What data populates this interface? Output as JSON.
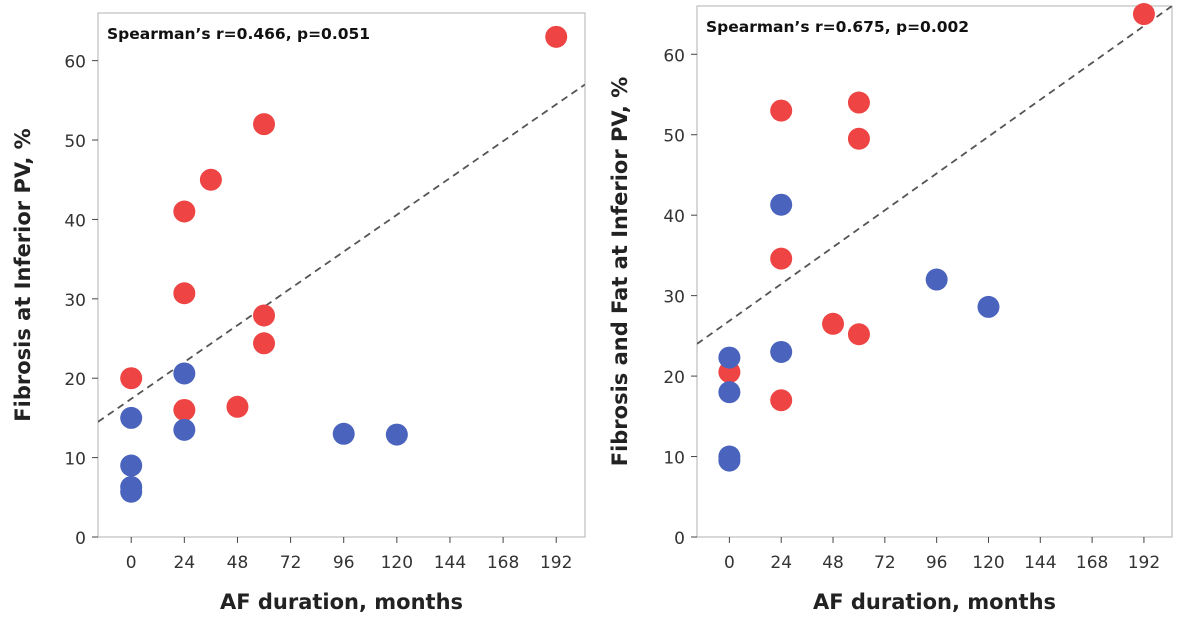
{
  "colors": {
    "series_red": "#ee4444",
    "series_blue": "#4a63bd"
  },
  "chart_data": [
    {
      "type": "scatter",
      "annotation": "Spearman’s r=0.466, p=0.051",
      "xlabel": "AF duration, months",
      "ylabel": "Fibrosis at Inferior PV, %",
      "xlim": [
        -15,
        205
      ],
      "ylim": [
        0,
        66
      ],
      "xticks": [
        0,
        24,
        48,
        72,
        96,
        120,
        144,
        168,
        192
      ],
      "yticks": [
        0,
        10,
        20,
        30,
        40,
        50,
        60
      ],
      "grid": false,
      "trend_line": {
        "style": "dashed",
        "points": [
          [
            -15,
            14.5
          ],
          [
            205,
            57
          ]
        ]
      },
      "series": [
        {
          "color": "#ee4444",
          "points": [
            {
              "x": 0,
              "y": 20
            },
            {
              "x": 24,
              "y": 41
            },
            {
              "x": 24,
              "y": 30.7
            },
            {
              "x": 24,
              "y": 16
            },
            {
              "x": 36,
              "y": 45
            },
            {
              "x": 48,
              "y": 16.4
            },
            {
              "x": 60,
              "y": 52
            },
            {
              "x": 60,
              "y": 27.9
            },
            {
              "x": 60,
              "y": 24.4
            },
            {
              "x": 192,
              "y": 63
            }
          ]
        },
        {
          "color": "#4a63bd",
          "points": [
            {
              "x": 0,
              "y": 15
            },
            {
              "x": 0,
              "y": 9
            },
            {
              "x": 0,
              "y": 6.3
            },
            {
              "x": 0,
              "y": 5.7
            },
            {
              "x": 24,
              "y": 20.6
            },
            {
              "x": 24,
              "y": 13.5
            },
            {
              "x": 96,
              "y": 13
            },
            {
              "x": 120,
              "y": 12.9
            }
          ]
        }
      ]
    },
    {
      "type": "scatter",
      "annotation": "Spearman’s r=0.675, p=0.002",
      "xlabel": "AF duration, months",
      "ylabel": "Fibrosis and Fat at Inferior PV, %",
      "xlim": [
        -15,
        205
      ],
      "ylim": [
        0,
        66
      ],
      "xticks": [
        0,
        24,
        48,
        72,
        96,
        120,
        144,
        168,
        192
      ],
      "yticks": [
        0,
        10,
        20,
        30,
        40,
        50,
        60
      ],
      "grid": false,
      "trend_line": {
        "style": "dashed",
        "points": [
          [
            -15,
            24
          ],
          [
            205,
            66
          ]
        ]
      },
      "series": [
        {
          "color": "#ee4444",
          "points": [
            {
              "x": 0,
              "y": 20.5
            },
            {
              "x": 24,
              "y": 53
            },
            {
              "x": 24,
              "y": 34.6
            },
            {
              "x": 24,
              "y": 17
            },
            {
              "x": 48,
              "y": 26.5
            },
            {
              "x": 60,
              "y": 54
            },
            {
              "x": 60,
              "y": 49.5
            },
            {
              "x": 60,
              "y": 25.2
            },
            {
              "x": 192,
              "y": 65
            }
          ]
        },
        {
          "color": "#4a63bd",
          "points": [
            {
              "x": 0,
              "y": 22.3
            },
            {
              "x": 0,
              "y": 18
            },
            {
              "x": 0,
              "y": 10
            },
            {
              "x": 0,
              "y": 9.5
            },
            {
              "x": 24,
              "y": 41.3
            },
            {
              "x": 24,
              "y": 23
            },
            {
              "x": 96,
              "y": 32
            },
            {
              "x": 120,
              "y": 28.6
            }
          ]
        }
      ]
    }
  ]
}
